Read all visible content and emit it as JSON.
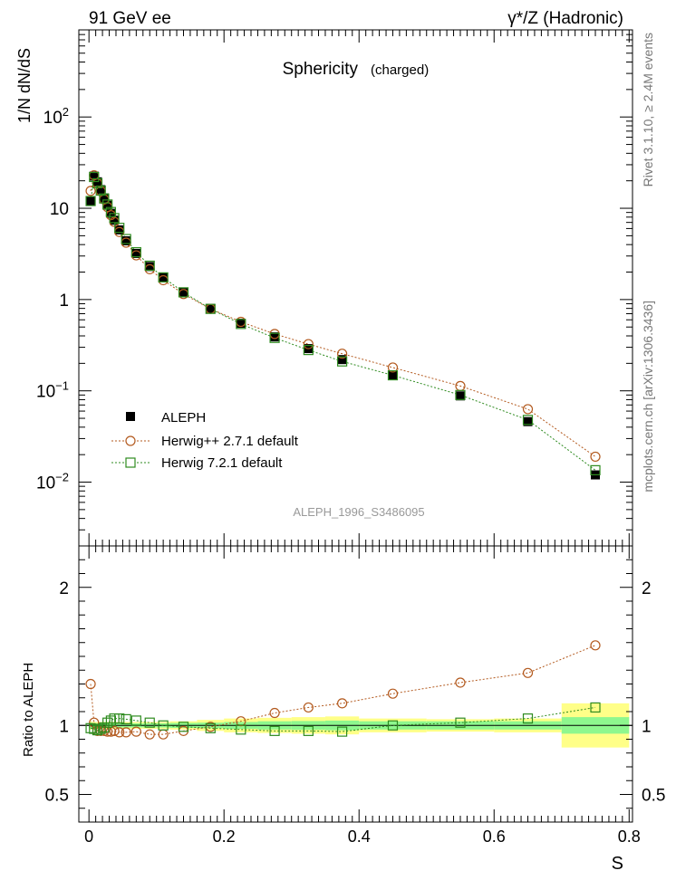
{
  "header": {
    "left": "91 GeV ee",
    "right": "γ*/Z (Hadronic)"
  },
  "side_labels": {
    "rivet": "Rivet 3.1.10, ≥ 2.4M events",
    "mcplots": "mcplots.cern.ch [arXiv:1306.3436]"
  },
  "colors": {
    "data": "#000000",
    "herwig_pp": "#b35a1f",
    "herwig7": "#2e8b1f",
    "band_inner": "#8ef78e",
    "band_outer": "#ffff88"
  },
  "chart_data": [
    {
      "type": "scatter",
      "title": "Sphericity",
      "subtitle": "(charged)",
      "ylabel": "1/N dN/dS",
      "xlabel": "S",
      "yscale": "log",
      "xlim": [
        -0.015,
        0.805
      ],
      "ylim": [
        0.002,
        900
      ],
      "y_ticks": [
        {
          "value": 0.01,
          "base": "10",
          "exp": "−2"
        },
        {
          "value": 0.1,
          "base": "10",
          "exp": "−1"
        },
        {
          "value": 1,
          "base": "1",
          "exp": ""
        },
        {
          "value": 10,
          "base": "10",
          "exp": ""
        },
        {
          "value": 100,
          "base": "10",
          "exp": "2"
        }
      ],
      "watermark": "ALEPH_1996_S3486095",
      "legend": [
        "ALEPH",
        "Herwig++ 2.7.1 default",
        "Herwig 7.2.1 default"
      ],
      "x": [
        0.0025,
        0.0075,
        0.0125,
        0.0175,
        0.0225,
        0.0275,
        0.0325,
        0.0375,
        0.045,
        0.055,
        0.07,
        0.09,
        0.11,
        0.14,
        0.18,
        0.225,
        0.275,
        0.325,
        0.375,
        0.45,
        0.55,
        0.65,
        0.75
      ],
      "series": [
        {
          "name": "ALEPH",
          "marker": "filled-square",
          "values": [
            12.0,
            22.5,
            19.5,
            16.0,
            13.0,
            10.8,
            8.8,
            7.4,
            5.8,
            4.4,
            3.2,
            2.3,
            1.75,
            1.2,
            0.8,
            0.55,
            0.39,
            0.29,
            0.22,
            0.148,
            0.088,
            0.046,
            0.012
          ]
        },
        {
          "name": "Herwig++ 2.7.1 default",
          "marker": "open-circle",
          "values": [
            15.5,
            23.0,
            18.7,
            15.4,
            12.5,
            10.3,
            8.4,
            7.1,
            5.5,
            4.2,
            3.05,
            2.15,
            1.63,
            1.15,
            0.79,
            0.57,
            0.42,
            0.325,
            0.255,
            0.18,
            0.113,
            0.063,
            0.019
          ]
        },
        {
          "name": "Herwig 7.2.1 default",
          "marker": "open-square",
          "values": [
            12.0,
            22.0,
            18.8,
            15.6,
            12.8,
            11.0,
            9.1,
            7.8,
            6.1,
            4.6,
            3.3,
            2.35,
            1.75,
            1.2,
            0.79,
            0.54,
            0.38,
            0.28,
            0.21,
            0.148,
            0.09,
            0.048,
            0.0135
          ]
        }
      ]
    },
    {
      "type": "scatter",
      "ylabel": "Ratio to ALEPH",
      "xlabel": "S",
      "ylim": [
        0.3,
        2.3
      ],
      "y_ticks": [
        0.5,
        1,
        2
      ],
      "y_tick_labels": [
        "0.5",
        "1",
        "2"
      ],
      "x_ticks": [
        0,
        0.2,
        0.4,
        0.6,
        0.8
      ],
      "x_tick_labels": [
        "0",
        "0.2",
        "0.4",
        "0.6",
        "0.8"
      ],
      "bands": {
        "edges": [
          0.0,
          0.005,
          0.01,
          0.015,
          0.02,
          0.025,
          0.03,
          0.035,
          0.04,
          0.05,
          0.06,
          0.08,
          0.1,
          0.12,
          0.16,
          0.2,
          0.25,
          0.3,
          0.35,
          0.4,
          0.5,
          0.6,
          0.7,
          0.8
        ],
        "inner": [
          0.02,
          0.015,
          0.015,
          0.015,
          0.015,
          0.015,
          0.015,
          0.015,
          0.015,
          0.015,
          0.015,
          0.015,
          0.015,
          0.018,
          0.02,
          0.025,
          0.03,
          0.032,
          0.035,
          0.03,
          0.03,
          0.03,
          0.06
        ],
        "outer": [
          0.03,
          0.025,
          0.025,
          0.025,
          0.025,
          0.025,
          0.025,
          0.025,
          0.025,
          0.025,
          0.025,
          0.025,
          0.025,
          0.03,
          0.04,
          0.05,
          0.055,
          0.06,
          0.065,
          0.05,
          0.045,
          0.05,
          0.16
        ]
      },
      "series": [
        {
          "name": "Herwig++ 2.7.1 default",
          "marker": "open-circle",
          "values": [
            1.3,
            1.02,
            0.96,
            0.96,
            0.96,
            0.955,
            0.955,
            0.96,
            0.95,
            0.95,
            0.955,
            0.935,
            0.935,
            0.96,
            0.99,
            1.03,
            1.09,
            1.13,
            1.16,
            1.23,
            1.31,
            1.38,
            1.58
          ]
        },
        {
          "name": "Herwig 7.2.1 default",
          "marker": "open-square",
          "values": [
            0.98,
            0.975,
            0.965,
            0.975,
            0.985,
            1.02,
            1.035,
            1.05,
            1.05,
            1.045,
            1.035,
            1.02,
            1.0,
            0.99,
            0.98,
            0.97,
            0.96,
            0.96,
            0.955,
            1.0,
            1.02,
            1.05,
            1.13
          ]
        }
      ]
    }
  ]
}
